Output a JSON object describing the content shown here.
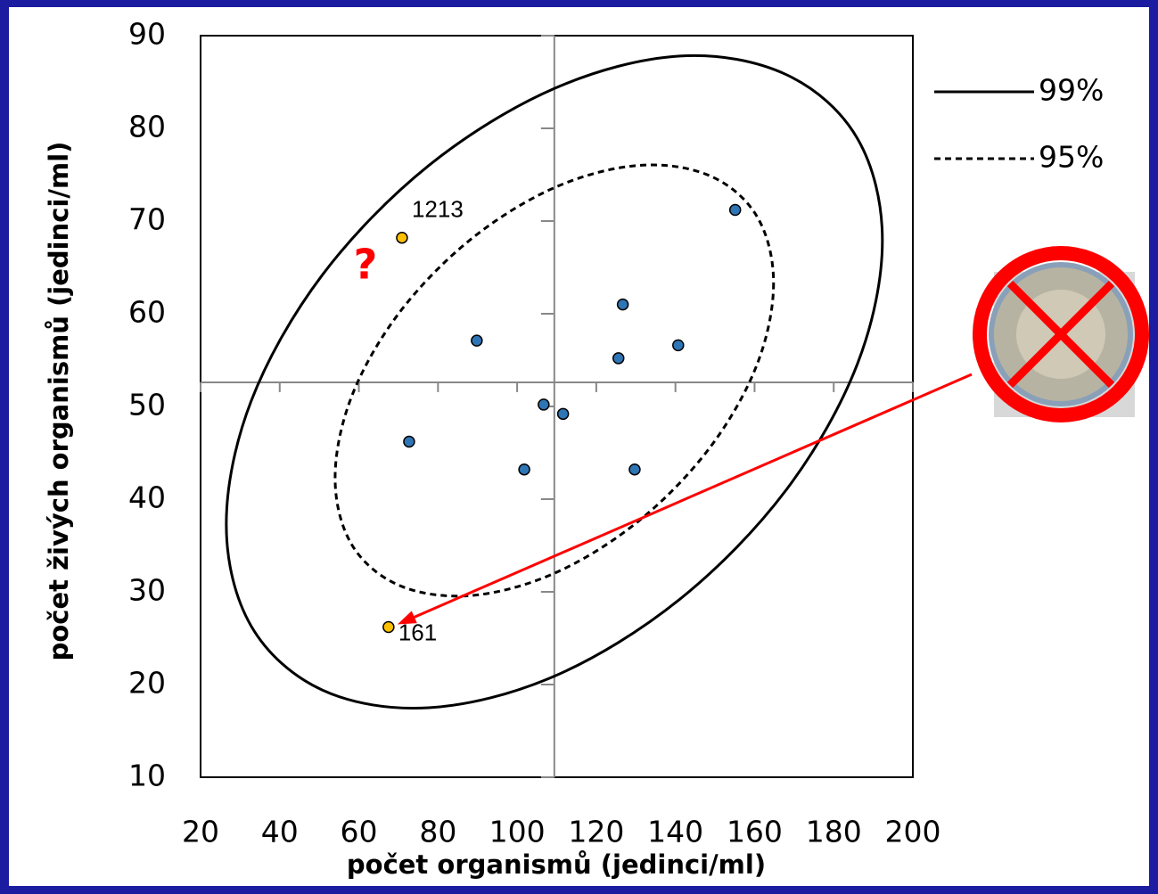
{
  "chart_data": {
    "type": "scatter",
    "x_label": "počet organismů  (jedinci/ml)",
    "y_label": "počet živých organismů (jedinci/ml)",
    "xlim": [
      20,
      200
    ],
    "xticks": [
      20,
      40,
      60,
      80,
      100,
      120,
      140,
      160,
      180,
      200
    ],
    "ylim": [
      10,
      90
    ],
    "yticks": [
      10,
      20,
      30,
      40,
      50,
      60,
      70,
      80,
      90
    ],
    "axis_cross": {
      "x": 109.4,
      "y": 52.6
    },
    "series": [
      {
        "color": "#2e75b6",
        "x": [
          155.1,
          126.7,
          140.7,
          125.6,
          89.8,
          106.7,
          111.6,
          72.7,
          101.8,
          129.7
        ],
        "y": [
          71.2,
          61.0,
          56.6,
          55.2,
          57.1,
          50.2,
          49.2,
          46.2,
          43.2,
          43.2
        ]
      },
      {
        "color": "#ffc000",
        "x": [
          70.9,
          67.5
        ],
        "y": [
          68.2,
          26.2
        ],
        "labels": [
          "1213",
          "161"
        ]
      }
    ],
    "lines": [
      {
        "name": "99%",
        "color": "#000000",
        "dash": "solid",
        "x": [
          192.3,
          186.0,
          168.0,
          141.1,
          109.4,
          77.7,
          50.8,
          32.8,
          26.5,
          32.8,
          50.8,
          77.7,
          109.4,
          141.1,
          168.0,
          186.0
        ],
        "y": [
          67.9,
          54.6,
          41.0,
          29.2,
          20.9,
          17.5,
          19.4,
          26.3,
          37.3,
          50.6,
          64.2,
          76.0,
          84.3,
          87.8,
          85.8,
          78.9
        ]
      },
      {
        "name": "95%",
        "color": "#000000",
        "dash": "dashed",
        "x": [
          164.8,
          160.6,
          148.6,
          130.6,
          109.4,
          88.2,
          70.2,
          58.2,
          54.0,
          58.2,
          70.2,
          88.2,
          109.4,
          130.6,
          148.6,
          160.6
        ],
        "y": [
          63.3,
          54.5,
          45.5,
          37.6,
          32.0,
          29.6,
          30.7,
          35.1,
          42.3,
          51.1,
          60.1,
          68.0,
          73.6,
          76.0,
          74.9,
          70.5
        ]
      }
    ],
    "annotations": [
      {
        "text": "?",
        "color": "#ff0000"
      }
    ]
  }
}
